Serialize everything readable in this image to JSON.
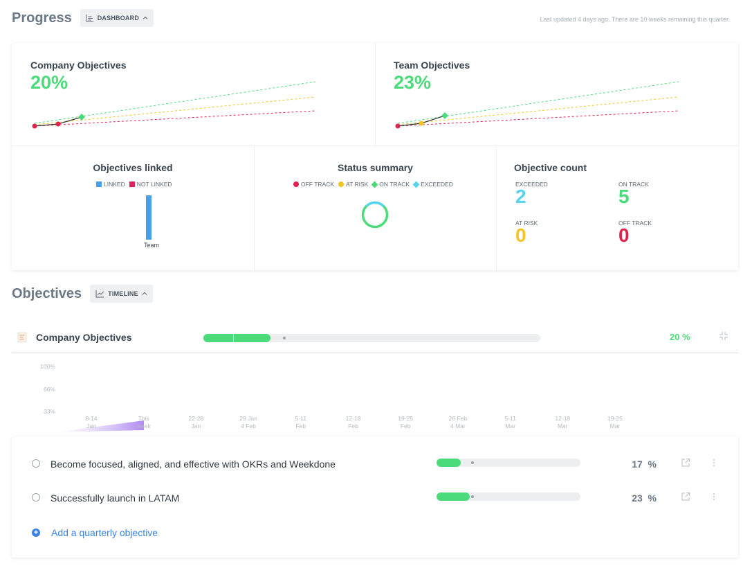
{
  "progress": {
    "title": "Progress",
    "view_label": "DASHBOARD",
    "updated_text": "Last updated 4 days ago. There are 10 weeks remaining this quarter."
  },
  "dashboard": {
    "company": {
      "title": "Company Objectives",
      "percent": "20%"
    },
    "team": {
      "title": "Team Objectives",
      "percent": "23%"
    },
    "linked": {
      "title": "Objectives linked",
      "legend": [
        {
          "label": "LINKED",
          "color": "#4a9fe8"
        },
        {
          "label": "NOT LINKED",
          "color": "#e0235a"
        }
      ],
      "bar_label": "Team"
    },
    "status": {
      "title": "Status summary",
      "legend": [
        {
          "label": "OFF TRACK",
          "color": "#e0234e",
          "shape": "dot"
        },
        {
          "label": "AT RISK",
          "color": "#f5c524",
          "shape": "dot"
        },
        {
          "label": "ON TRACK",
          "color": "#4cdb7b",
          "shape": "diamond"
        },
        {
          "label": "EXCEEDED",
          "color": "#5ad3ee",
          "shape": "diamond"
        }
      ]
    },
    "count": {
      "title": "Objective count",
      "exceeded": {
        "label": "EXCEEDED",
        "value": "2",
        "color": "#5ad3ee"
      },
      "on_track": {
        "label": "ON TRACK",
        "value": "5",
        "color": "#4cdb7b"
      },
      "at_risk": {
        "label": "AT RISK",
        "value": "0",
        "color": "#f5c524"
      },
      "off_track": {
        "label": "OFF TRACK",
        "value": "0",
        "color": "#e0234e"
      }
    }
  },
  "objectives": {
    "title": "Objectives",
    "view_label": "TIMELINE",
    "company_row": {
      "title": "Company Objectives",
      "percent": "20 %",
      "progress": 0.2
    },
    "timeline": {
      "y_labels": [
        "100%",
        "66%",
        "33%"
      ],
      "x_labels": [
        [
          "8-14",
          "Jan"
        ],
        [
          "This",
          "week"
        ],
        [
          "22-28",
          "Jan"
        ],
        [
          "29 Jan",
          "4 Feb"
        ],
        [
          "5-11",
          "Feb"
        ],
        [
          "12-18",
          "Feb"
        ],
        [
          "19-25",
          "Feb"
        ],
        [
          "26 Feb",
          "4 Mar"
        ],
        [
          "5-11",
          "Mar"
        ],
        [
          "12-18",
          "Mar"
        ],
        [
          "19-25",
          "Mar"
        ]
      ]
    },
    "items": [
      {
        "name": "Become focused, aligned, and effective with OKRs and Weekdone",
        "percent": "17",
        "unit": "%",
        "progress": 0.17
      },
      {
        "name": "Successfully launch in LATAM",
        "percent": "23",
        "unit": "%",
        "progress": 0.23
      }
    ],
    "add_label": "Add a quarterly objective"
  },
  "colors": {
    "accent_green": "#4cdb7b",
    "link_blue": "#3b82e6"
  }
}
